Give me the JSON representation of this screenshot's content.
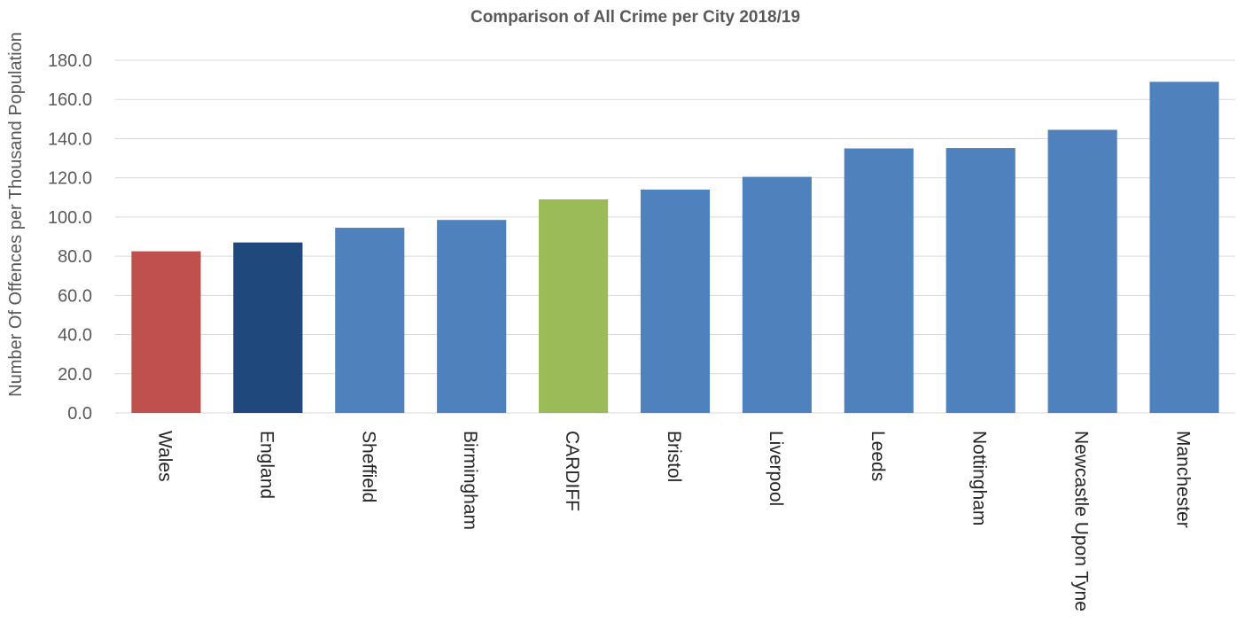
{
  "chart_data": {
    "type": "bar",
    "title": "Comparison of All Crime per City 2018/19",
    "xlabel": "",
    "ylabel": "Number Of Offences per Thousand Population",
    "ylim": [
      0,
      180
    ],
    "yticks": [
      "0.0",
      "20.0",
      "40.0",
      "60.0",
      "80.0",
      "100.0",
      "120.0",
      "140.0",
      "160.0",
      "180.0"
    ],
    "grid": true,
    "legend": "none",
    "categories": [
      "Wales",
      "England",
      "Sheffield",
      "Birmingham",
      "CARDIFF",
      "Bristol",
      "Liverpool",
      "Leeds",
      "Nottingham",
      "Newcastle Upon Tyne",
      "Manchester"
    ],
    "values": [
      82.5,
      87.0,
      94.5,
      98.5,
      109.0,
      114.0,
      120.5,
      135.0,
      135.2,
      144.5,
      169.0
    ],
    "colors": [
      "#c0504d",
      "#1f497d",
      "#4f81bd",
      "#4f81bd",
      "#9bbb59",
      "#4f81bd",
      "#4f81bd",
      "#4f81bd",
      "#4f81bd",
      "#4f81bd",
      "#4f81bd"
    ]
  }
}
